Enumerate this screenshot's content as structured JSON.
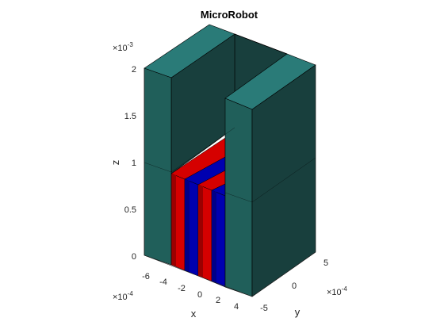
{
  "figure": {
    "title": "MicroRobot",
    "xlabel": "x",
    "ylabel": "y",
    "zlabel": "z",
    "z_ticks": [
      "0",
      "0.5",
      "1",
      "1.5",
      "2"
    ],
    "z_exponent": "×10",
    "z_exponent_power": "-3",
    "x_ticks": [
      "-6",
      "-4",
      "-2",
      "0",
      "2",
      "4"
    ],
    "x_exponent": "×10",
    "x_exponent_power": "-4",
    "y_ticks": [
      "-5",
      "0",
      "5"
    ],
    "y_exponent": "×10",
    "y_exponent_power": "-4"
  },
  "colors": {
    "wall_front": "#205f5a",
    "wall_side": "#183f3d",
    "wall_top": "#2a7b78",
    "red": "#d50000",
    "red_dark": "#9b0000",
    "blue": "#0000b0",
    "blue_dark": "#000088",
    "edge": "#000000"
  }
}
